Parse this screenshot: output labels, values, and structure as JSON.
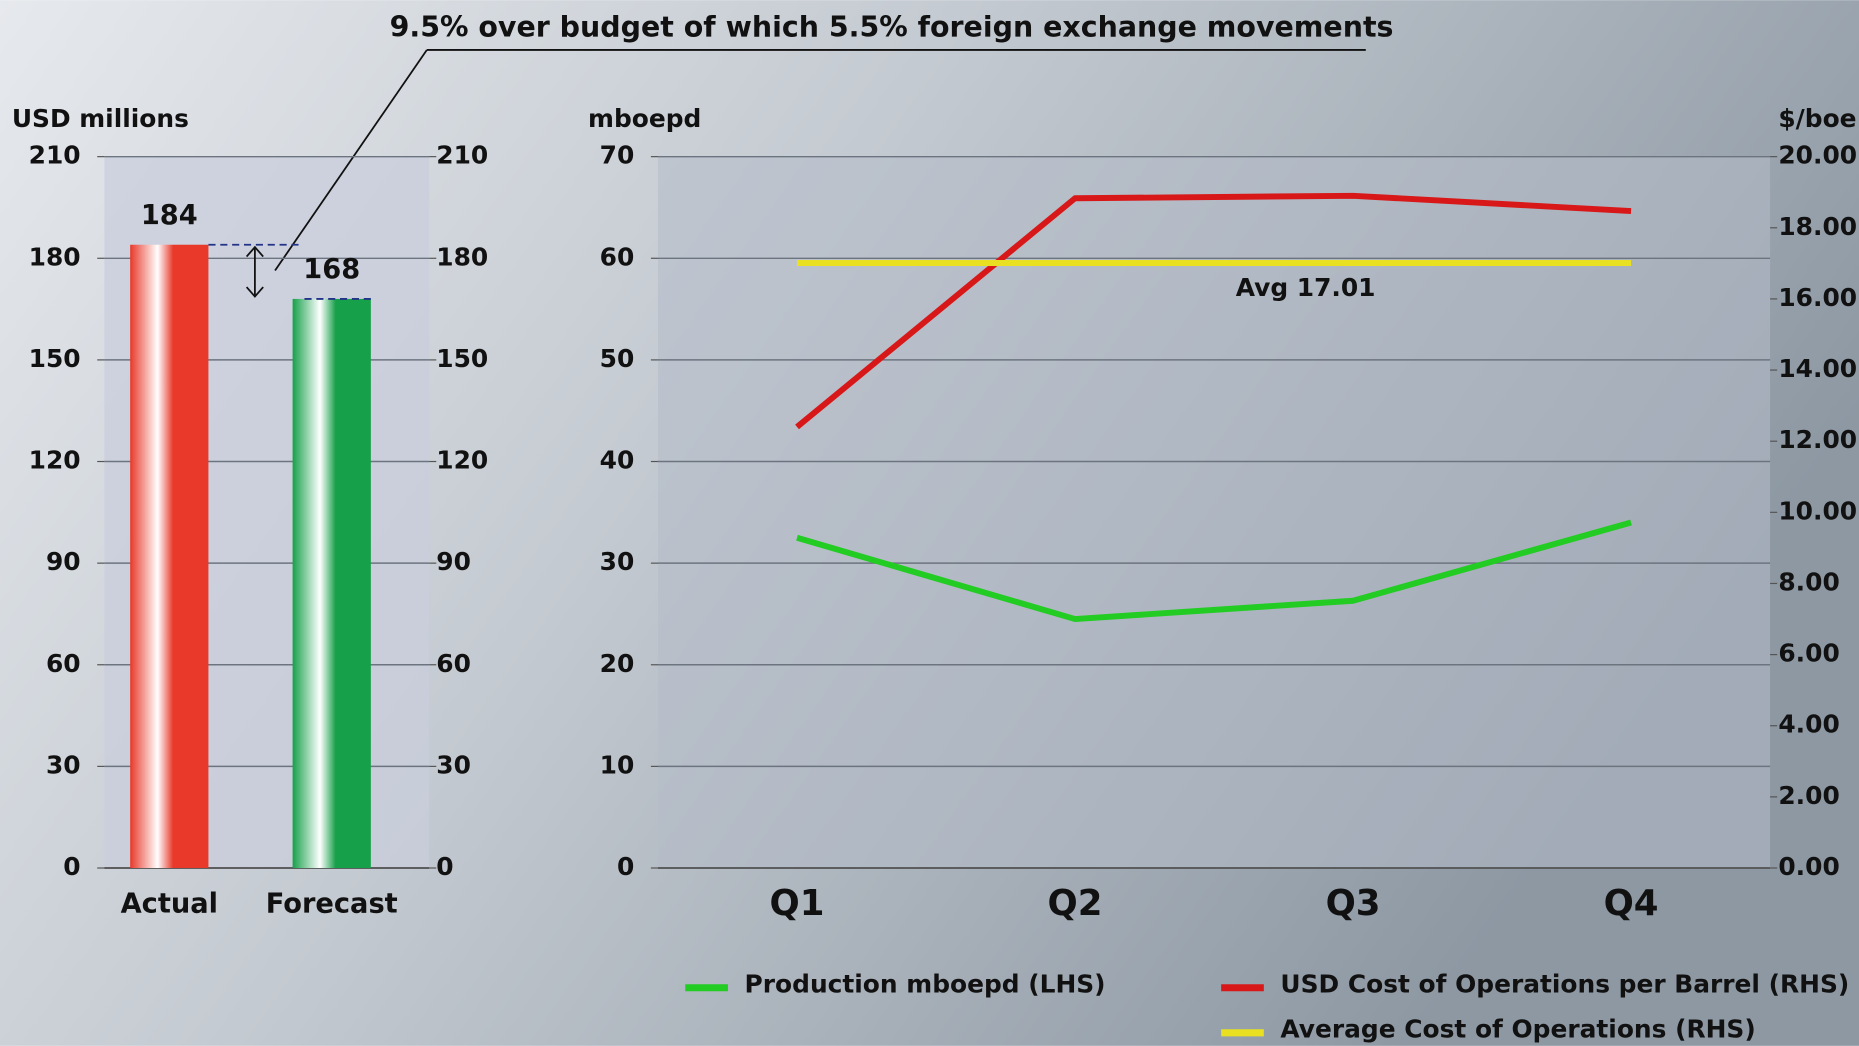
{
  "chart_data": [
    {
      "type": "bar",
      "y_label": "USD millions",
      "annotation": "9.5% over budget of which 5.5% foreign exchange movements",
      "categories": [
        "Actual",
        "Forecast"
      ],
      "values": [
        184,
        168
      ],
      "colors": [
        "#e8392a",
        "#17a04a"
      ],
      "ylim": [
        0,
        210
      ],
      "yticks": [
        0,
        30,
        60,
        90,
        120,
        150,
        180,
        210
      ],
      "y2lim": [
        0,
        210
      ],
      "y2ticks": [
        0,
        30,
        60,
        90,
        120,
        150,
        180,
        210
      ],
      "grid": true
    },
    {
      "type": "line",
      "y_label": "mboepd",
      "y2_label": "$/boe",
      "annotation": "Avg 17.01",
      "categories": [
        "Q1",
        "Q2",
        "Q3",
        "Q4"
      ],
      "series": [
        {
          "name": "Production mboepd (LHS)",
          "color": "#22cc22",
          "values": [
            32.5,
            24.5,
            26.3,
            34
          ]
        },
        {
          "name": "USD Cost of Operations per Barrel (RHS)",
          "color": "#d81818",
          "axis": "y2",
          "values": [
            12.4,
            18.83,
            18.9,
            18.47
          ]
        },
        {
          "name": "Average Cost of Operations (RHS)",
          "color": "#e8e020",
          "axis": "y2",
          "values": [
            17.01,
            17.01,
            17.01,
            17.01
          ]
        }
      ],
      "ylim": [
        0,
        70
      ],
      "yticks": [
        0,
        10,
        20,
        30,
        40,
        50,
        60,
        70
      ],
      "y2lim": [
        0,
        20
      ],
      "y2ticks": [
        {
          "value": 0,
          "label": "0.00"
        },
        {
          "value": 2,
          "label": "2.00"
        },
        {
          "value": 4,
          "label": "4.00"
        },
        {
          "value": 6,
          "label": "6.00"
        },
        {
          "value": 8,
          "label": "8.00"
        },
        {
          "value": 10,
          "label": "10.00"
        },
        {
          "value": 12,
          "label": "12.00"
        },
        {
          "value": 14,
          "label": "14.00"
        },
        {
          "value": 16,
          "label": "16.00"
        },
        {
          "value": 18,
          "label": "18.00"
        },
        {
          "value": 20,
          "label": "20.00"
        }
      ],
      "grid": true,
      "legend": "bottom"
    }
  ]
}
